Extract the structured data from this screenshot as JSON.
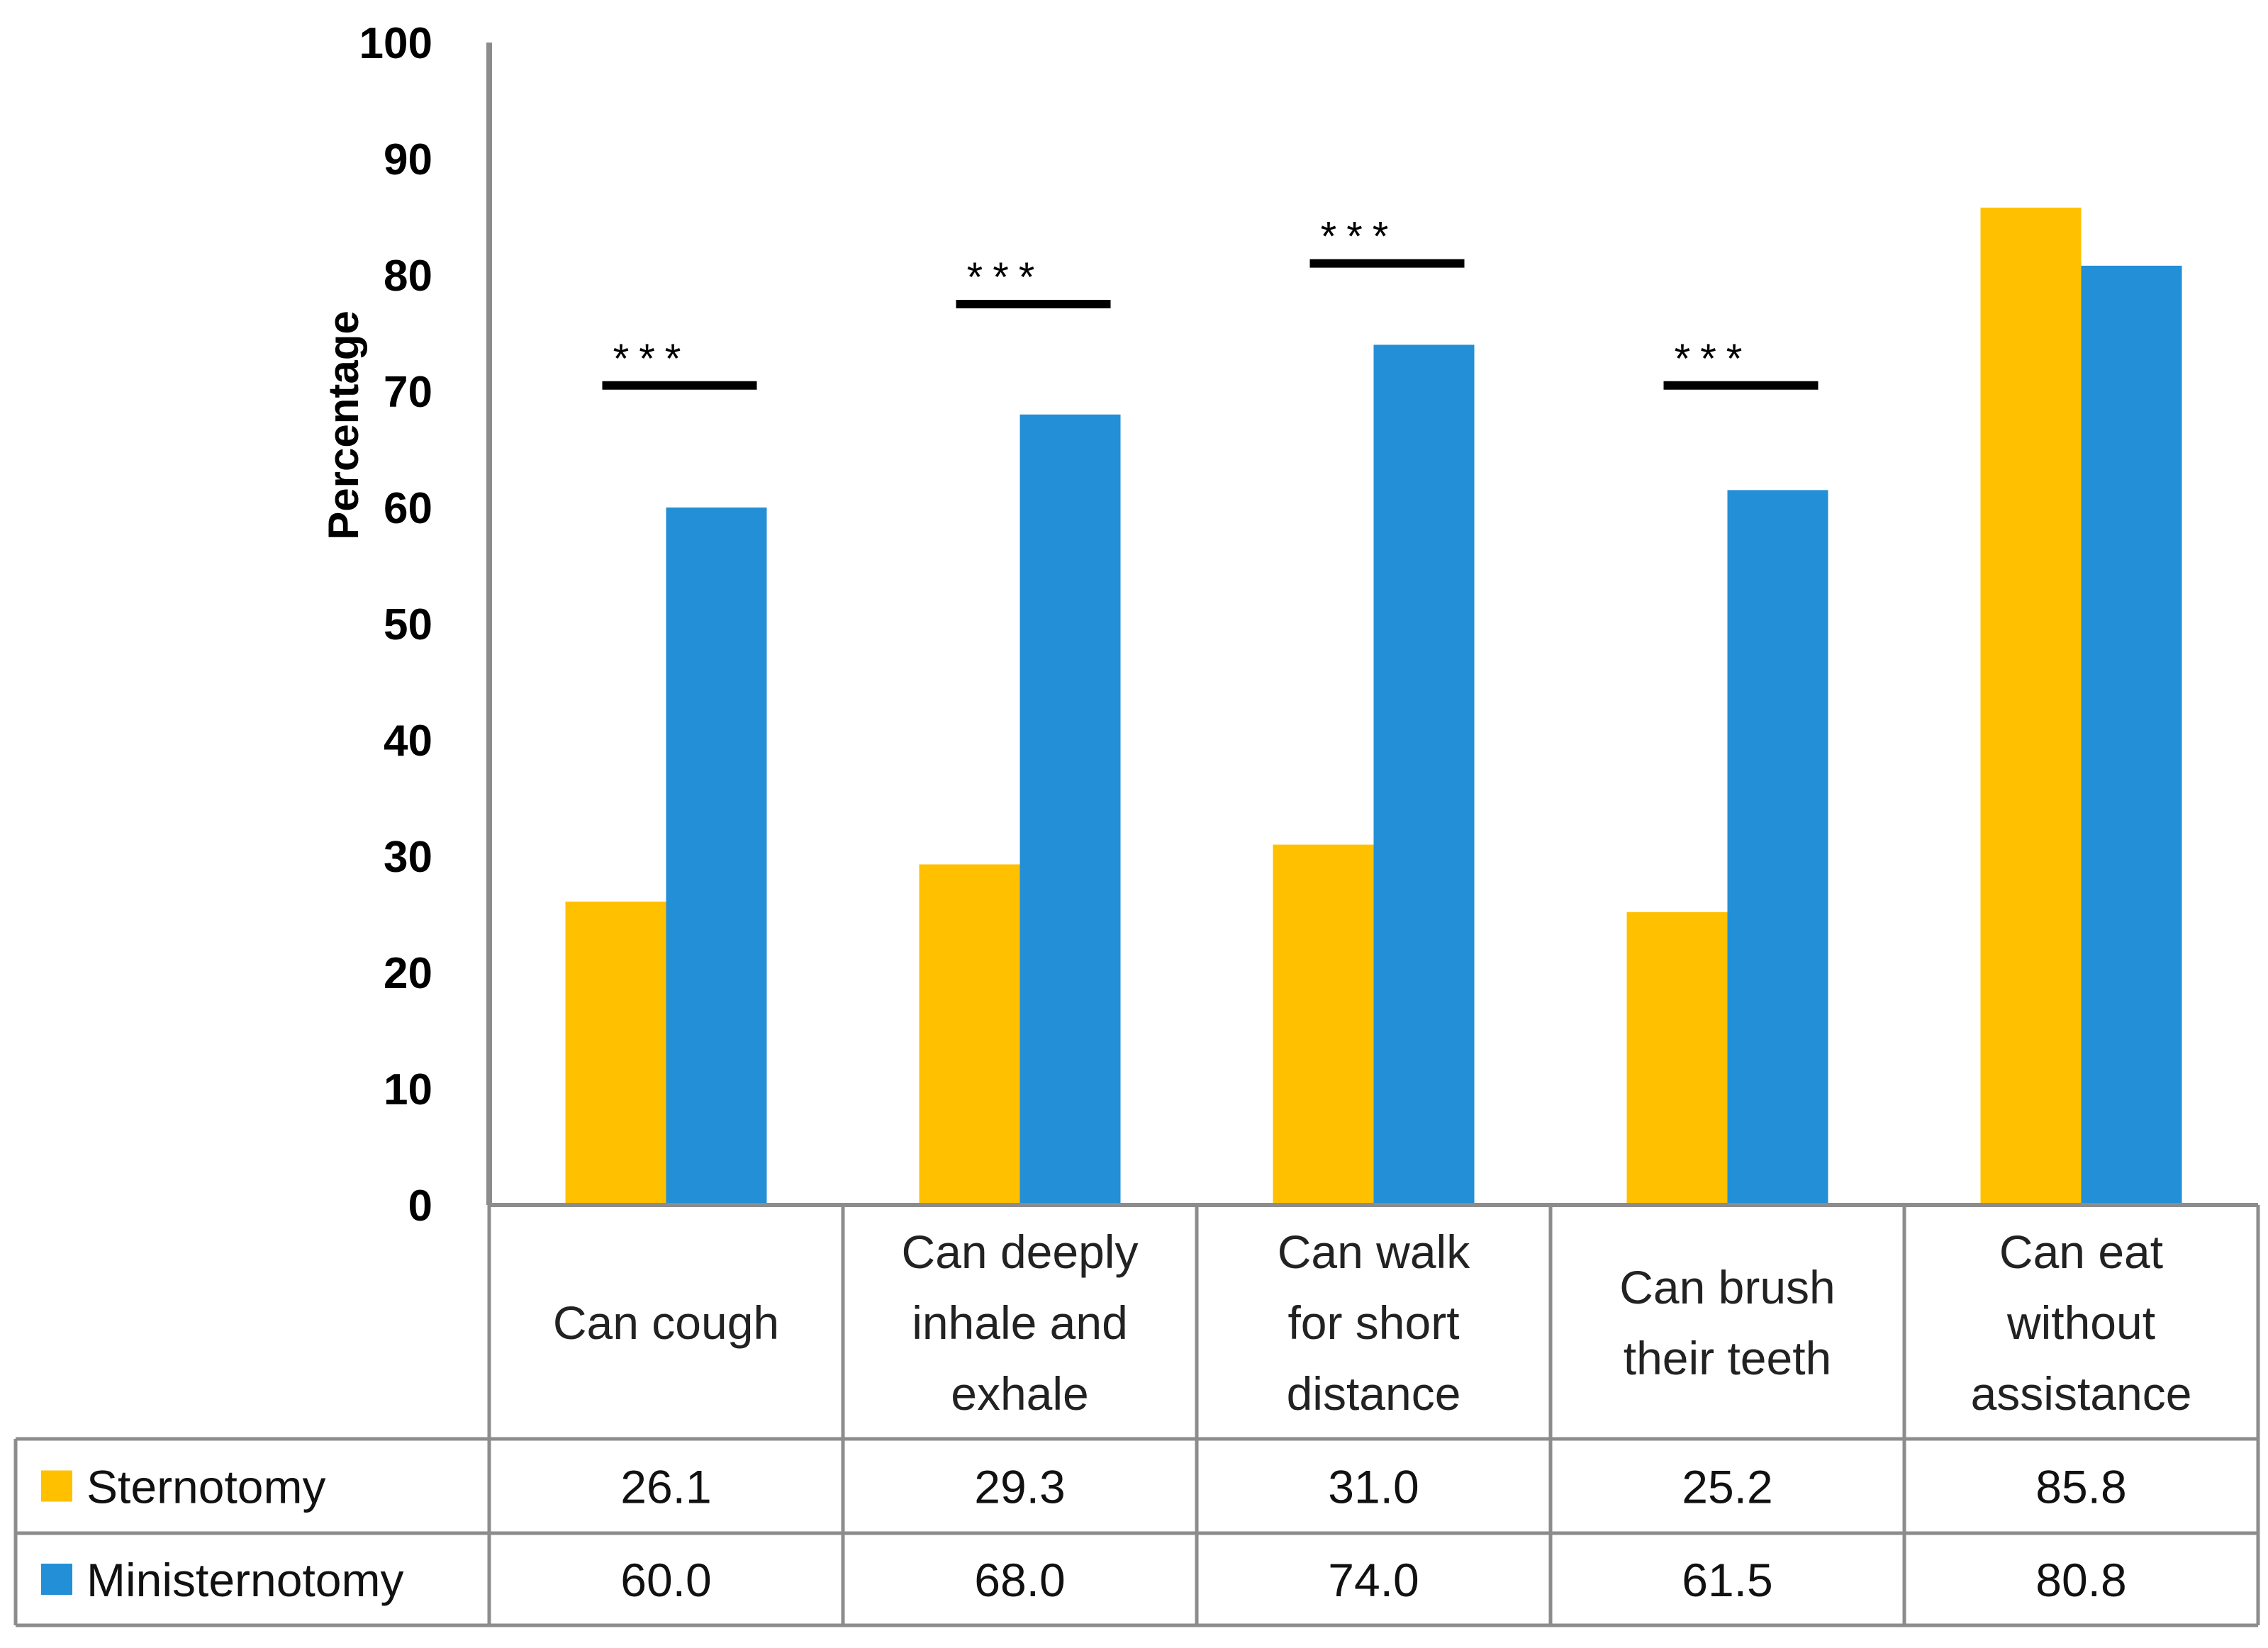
{
  "chart_data": {
    "type": "bar",
    "title": "",
    "xlabel": "",
    "ylabel": "Percentage",
    "ylim": [
      0,
      100
    ],
    "yticks": [
      0,
      10,
      20,
      30,
      40,
      50,
      60,
      70,
      80,
      90,
      100
    ],
    "categories": [
      [
        "Can cough"
      ],
      [
        "Can deeply",
        "inhale and",
        "exhale"
      ],
      [
        "Can walk",
        "for short",
        "distance"
      ],
      [
        "Can brush",
        "their teeth"
      ],
      [
        "Can eat",
        "without",
        "assistance"
      ]
    ],
    "series": [
      {
        "name": "Sternotomy",
        "color": "#FFC000",
        "values": [
          26.1,
          29.3,
          31.0,
          25.2,
          85.8
        ],
        "labels": [
          "26.1",
          "29.3",
          "31.0",
          "25.2",
          "85.8"
        ]
      },
      {
        "name": "Ministernotomy",
        "color": "#228FD6",
        "values": [
          60.0,
          68.0,
          74.0,
          61.5,
          80.8
        ],
        "labels": [
          "60.0",
          "68.0",
          "74.0",
          "61.5",
          "80.8"
        ]
      }
    ],
    "significance": [
      {
        "category_index": 0,
        "label": "***",
        "y": 70.5
      },
      {
        "category_index": 1,
        "label": "***",
        "y": 77.5
      },
      {
        "category_index": 2,
        "label": "***",
        "y": 81.0
      },
      {
        "category_index": 3,
        "label": "***",
        "y": 70.5
      }
    ],
    "data_table": true,
    "legend": "in data table rows"
  }
}
